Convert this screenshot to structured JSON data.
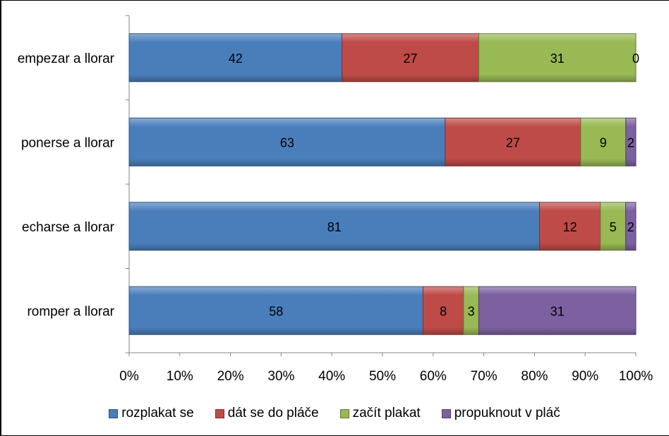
{
  "chart_data": {
    "type": "bar",
    "orientation": "horizontal",
    "stacked": "percent",
    "categories": [
      "empezar a llorar",
      "ponerse a llorar",
      "echarse a llorar",
      "romper a llorar"
    ],
    "series": [
      {
        "name": "rozplakat se",
        "color": "#4a7ebb",
        "values": [
          42,
          63,
          81,
          58
        ]
      },
      {
        "name": "dát se do pláče",
        "color": "#be4b48",
        "values": [
          27,
          27,
          12,
          8
        ]
      },
      {
        "name": "začít plakat",
        "color": "#98b954",
        "values": [
          31,
          9,
          5,
          3
        ]
      },
      {
        "name": "propuknout v pláč",
        "color": "#7d60a0",
        "values": [
          0,
          2,
          2,
          31
        ]
      }
    ],
    "xticks": [
      "0%",
      "10%",
      "20%",
      "30%",
      "40%",
      "50%",
      "60%",
      "70%",
      "80%",
      "90%",
      "100%"
    ],
    "xlim": [
      0,
      100
    ],
    "title": "",
    "xlabel": "",
    "ylabel": "",
    "grid": false,
    "legend_position": "bottom"
  }
}
